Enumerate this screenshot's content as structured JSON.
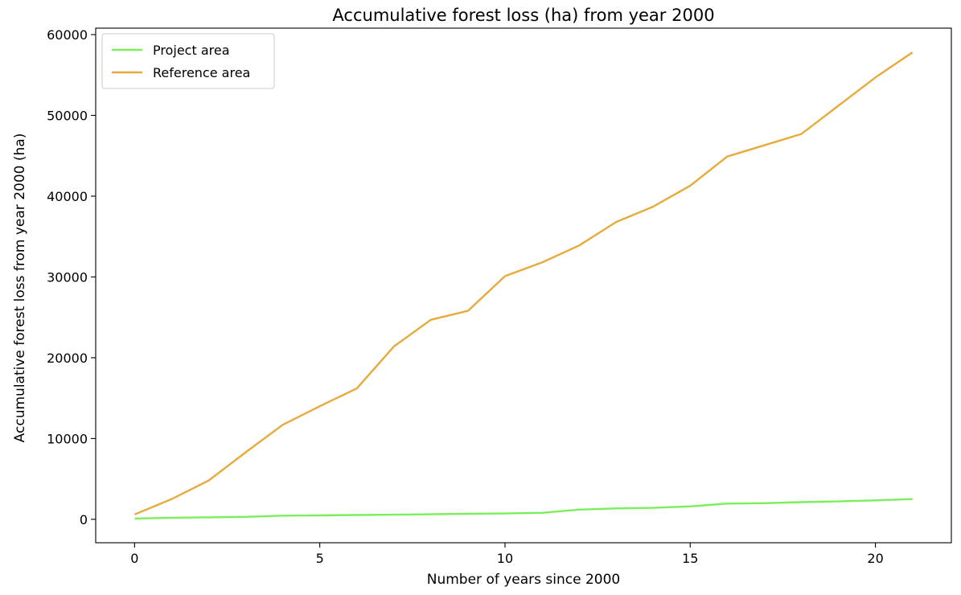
{
  "chart_data": {
    "type": "line",
    "title": "Accumulative forest loss (ha) from year 2000",
    "xlabel": "Number of years since 2000",
    "ylabel": "Accumulative forest loss from year 2000 (ha)",
    "xlim": [
      -1.05,
      22.05
    ],
    "ylim": [
      -2900,
      60800
    ],
    "xticks": [
      0,
      5,
      10,
      15,
      20
    ],
    "yticks": [
      0,
      10000,
      20000,
      30000,
      40000,
      50000,
      60000
    ],
    "grid": false,
    "legend_position": "top-left",
    "x": [
      0,
      1,
      2,
      3,
      4,
      5,
      6,
      7,
      8,
      9,
      10,
      11,
      12,
      13,
      14,
      15,
      16,
      17,
      18,
      19,
      20,
      21
    ],
    "series": [
      {
        "name": "Project area",
        "color": "#7aef5a",
        "values": [
          100,
          200,
          250,
          300,
          450,
          480,
          530,
          570,
          620,
          680,
          720,
          800,
          1200,
          1350,
          1420,
          1600,
          1950,
          2000,
          2130,
          2220,
          2350,
          2500
        ]
      },
      {
        "name": "Reference area",
        "color": "#e8aa3c",
        "values": [
          600,
          2500,
          4800,
          8300,
          11700,
          14000,
          16200,
          21400,
          24700,
          25800,
          30100,
          31800,
          33900,
          36800,
          38700,
          41300,
          44900,
          46300,
          47700,
          51200,
          54700,
          57800
        ]
      }
    ]
  }
}
